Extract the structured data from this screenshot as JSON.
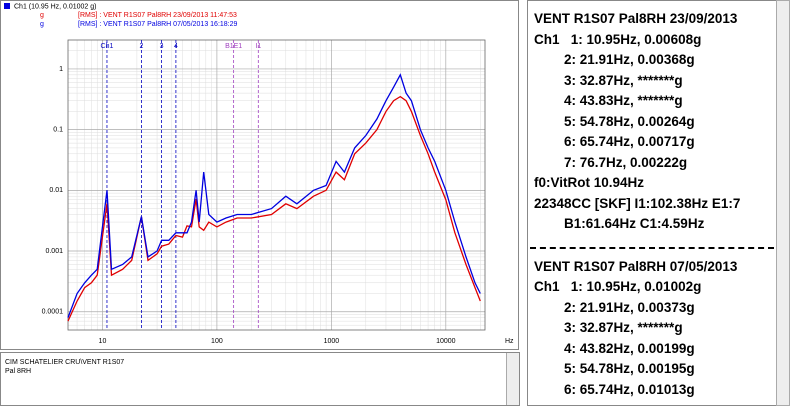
{
  "chart_data": {
    "type": "line",
    "header": "Ch1 (10.95 Hz, 0.01002 g)",
    "x_unit": "Hz",
    "log_x": true,
    "log_y": true,
    "grid": true,
    "xlim": [
      5,
      22000
    ],
    "ylim": [
      5e-05,
      3
    ],
    "xticks": [
      10,
      100,
      1000,
      10000
    ],
    "yticks": [
      1,
      0.1,
      0.01,
      0.001,
      0.0001
    ],
    "x": [
      5,
      6,
      7,
      8,
      9,
      10.95,
      12,
      15,
      18,
      21.91,
      25,
      30,
      32.87,
      38,
      43.82,
      50,
      54.78,
      60,
      65.74,
      70,
      76.7,
      85,
      100,
      120,
      150,
      200,
      300,
      400,
      500,
      700,
      900,
      1100,
      1300,
      1600,
      2000,
      2500,
      3000,
      3500,
      4000,
      4500,
      5000,
      6000,
      7000,
      8000,
      10000,
      12000,
      15000,
      18000,
      20000
    ],
    "series": [
      {
        "name": "[RMS] : VENT R1S07 Pal8RH 23/09/2013 11:47:53",
        "unit": "g",
        "color": "#e00000",
        "values": [
          7e-05,
          0.00015,
          0.00025,
          0.0003,
          0.0004,
          0.0061,
          0.0004,
          0.0005,
          0.0007,
          0.0037,
          0.0007,
          0.0009,
          0.0012,
          0.0013,
          0.0018,
          0.0017,
          0.0026,
          0.0025,
          0.0072,
          0.0025,
          0.0022,
          0.003,
          0.0025,
          0.003,
          0.0035,
          0.0035,
          0.004,
          0.006,
          0.005,
          0.008,
          0.01,
          0.02,
          0.015,
          0.04,
          0.06,
          0.1,
          0.2,
          0.3,
          0.35,
          0.3,
          0.2,
          0.08,
          0.04,
          0.02,
          0.007,
          0.002,
          0.0006,
          0.00025,
          0.00015
        ]
      },
      {
        "name": "[RMS] : VENT R1S07 Pal8RH 07/05/2013 16:18:29",
        "unit": "g",
        "color": "#0000e0",
        "values": [
          8e-05,
          0.0002,
          0.0003,
          0.0004,
          0.0005,
          0.01,
          0.0005,
          0.0006,
          0.0008,
          0.0037,
          0.0008,
          0.001,
          0.0015,
          0.0015,
          0.002,
          0.002,
          0.002,
          0.003,
          0.01,
          0.003,
          0.02,
          0.004,
          0.003,
          0.0035,
          0.004,
          0.004,
          0.005,
          0.008,
          0.006,
          0.01,
          0.012,
          0.03,
          0.02,
          0.05,
          0.08,
          0.15,
          0.3,
          0.5,
          0.8,
          0.4,
          0.3,
          0.1,
          0.05,
          0.03,
          0.01,
          0.003,
          0.0008,
          0.0003,
          0.0002
        ]
      }
    ],
    "cursors": [
      {
        "label": "Ch1",
        "x": 10.95,
        "color": "#0000c0"
      },
      {
        "label": "2",
        "x": 21.91,
        "color": "#0000c0"
      },
      {
        "label": "3",
        "x": 32.87,
        "color": "#0000c0"
      },
      {
        "label": "4",
        "x": 43.82,
        "color": "#0000c0"
      },
      {
        "label": "B1E1",
        "x": 140,
        "color": "#a040c0"
      },
      {
        "label": "I1",
        "x": 230,
        "color": "#a040c0"
      }
    ]
  },
  "info_panel": {
    "blocks": [
      {
        "title": "VENT R1S07 Pal8RH 23/09/2013",
        "rows": [
          "Ch1   1: 10.95Hz, 0.00608g",
          "2: 21.91Hz, 0.00368g",
          "3: 32.87Hz, *******g",
          "4: 43.83Hz, *******g",
          "5: 54.78Hz, 0.00264g",
          "6: 65.74Hz, 0.00717g",
          "7: 76.7Hz, 0.00222g"
        ],
        "notes": [
          "f0:VitRot 10.94Hz",
          "22348CC [SKF] I1:102.38Hz E1:7",
          "B1:61.64Hz C1:4.59Hz"
        ]
      },
      {
        "title": "VENT R1S07 Pal8RH 07/05/2013",
        "rows": [
          "Ch1   1: 10.95Hz, 0.01002g",
          "2: 21.91Hz, 0.00373g",
          "3: 32.87Hz, *******g",
          "4: 43.82Hz, 0.00199g",
          "5: 54.78Hz, 0.00195g",
          "6: 65.74Hz, 0.01013g"
        ],
        "notes": []
      }
    ]
  },
  "footer": {
    "lines": [
      "CIM SCHATELIER CRU\\VENT R1S07",
      "Pal 8RH"
    ]
  }
}
